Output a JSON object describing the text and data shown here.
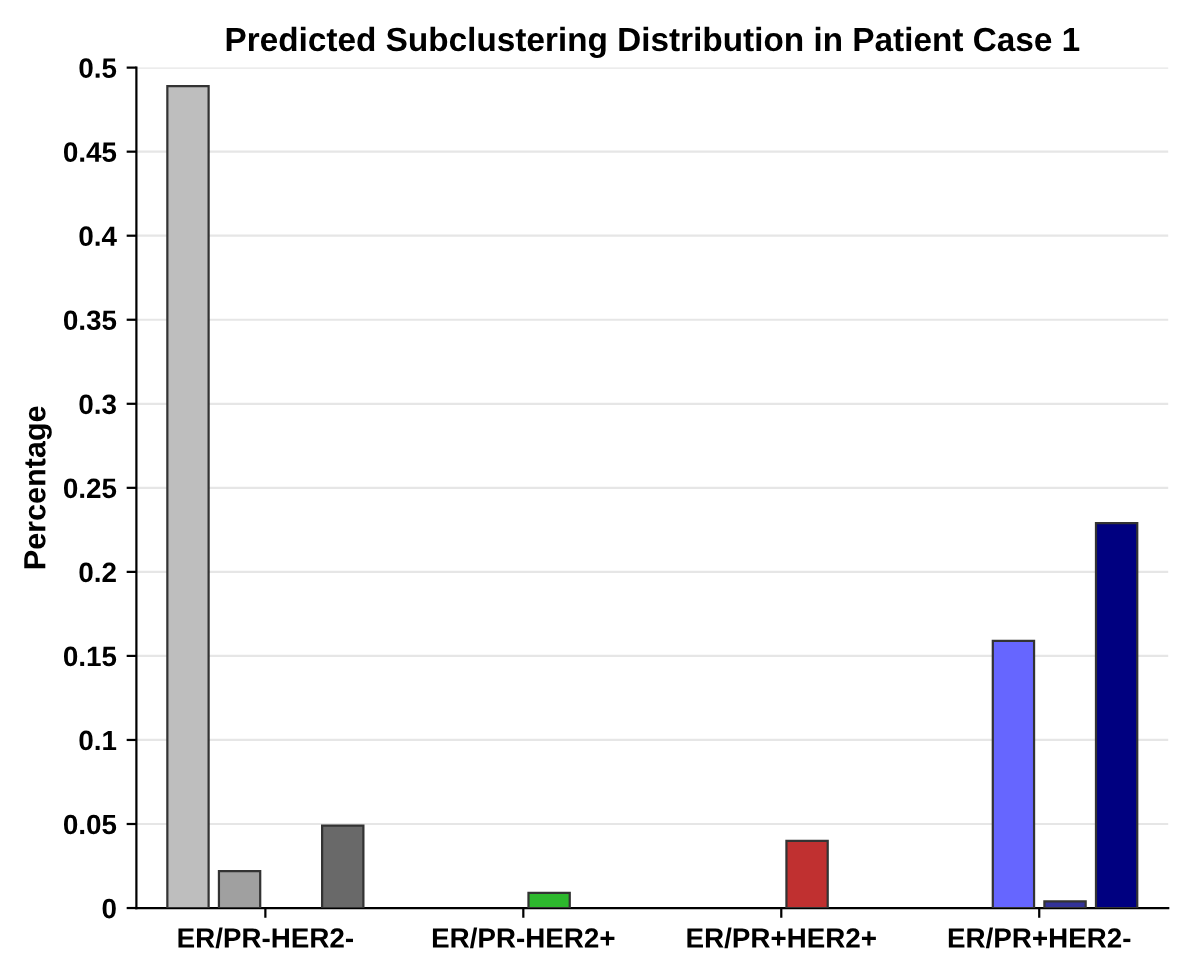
{
  "chart_data": {
    "type": "bar",
    "title": "Predicted Subclustering Distribution in Patient Case 1",
    "ylabel": "Percentage",
    "categories": [
      "ER/PR-HER2-",
      "ER/PR-HER2+",
      "ER/PR+HER2+",
      "ER/PR+HER2-"
    ],
    "series": [
      {
        "values": [
          0.489,
          null,
          null,
          null
        ],
        "colors": [
          "#bebebe",
          null,
          null,
          null
        ]
      },
      {
        "values": [
          0.022,
          null,
          null,
          0.159
        ],
        "colors": [
          "#a0a0a0",
          null,
          null,
          "#6666ff"
        ]
      },
      {
        "values": [
          null,
          0.009,
          0.04,
          0.004
        ],
        "colors": [
          null,
          "#2db82d",
          "#c03030",
          "#333399"
        ]
      },
      {
        "values": [
          0.049,
          null,
          null,
          0.229
        ],
        "colors": [
          "#696969",
          null,
          null,
          "#000080"
        ]
      }
    ],
    "ylim": [
      0,
      0.5
    ],
    "yticks": [
      0,
      0.05,
      0.1,
      0.15,
      0.2,
      0.25,
      0.3,
      0.35,
      0.4,
      0.45,
      0.5
    ],
    "grid": "y"
  }
}
